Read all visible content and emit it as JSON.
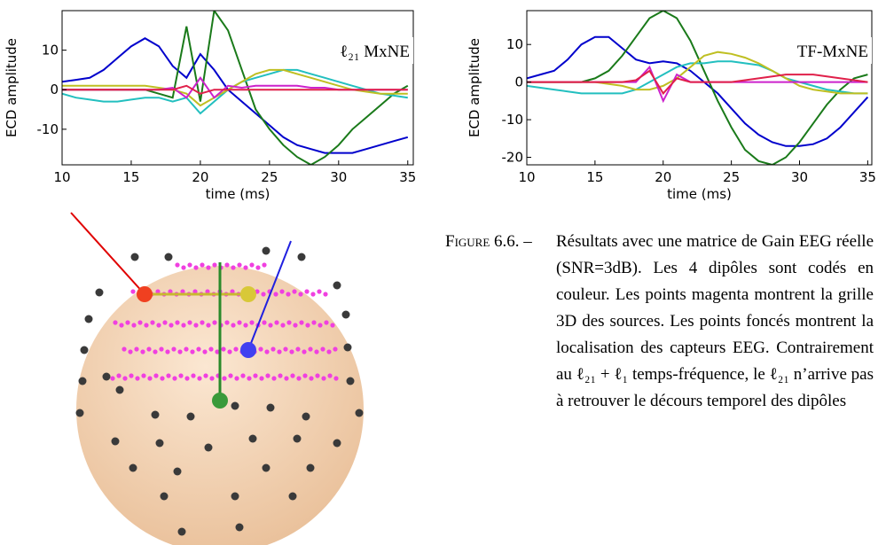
{
  "chart_data": [
    {
      "type": "line",
      "ylabel": "ECD amplitude",
      "xlabel": "time (ms)",
      "annotation": "ℓ₂₁ MxNE",
      "xlim": [
        10,
        35.4
      ],
      "xticks": [
        10,
        15,
        20,
        25,
        30,
        35
      ],
      "ylim": [
        -19,
        20
      ],
      "yticks": [
        -10,
        0,
        10
      ],
      "x": [
        10,
        11,
        12,
        13,
        14,
        15,
        16,
        17,
        18,
        19,
        20,
        21,
        22,
        23,
        24,
        25,
        26,
        27,
        28,
        29,
        30,
        31,
        32,
        33,
        34,
        35
      ],
      "series": [
        {
          "color": "#0000cc",
          "values": [
            2,
            2.5,
            3,
            5,
            8,
            11,
            13,
            11,
            6,
            3,
            9,
            5,
            0,
            -3,
            -6,
            -9,
            -12,
            -14,
            -15,
            -16,
            -16,
            -16,
            -15,
            -14,
            -13,
            -12
          ]
        },
        {
          "color": "#1a7a1a",
          "values": [
            0,
            0,
            0,
            0,
            0,
            0,
            0,
            -1,
            -2,
            16,
            -3,
            20,
            15,
            5,
            -5,
            -10,
            -14,
            -17,
            -19,
            -17,
            -14,
            -10,
            -7,
            -4,
            -1,
            1
          ]
        },
        {
          "color": "#22bfbf",
          "values": [
            -1,
            -2,
            -2.5,
            -3,
            -3,
            -2.5,
            -2,
            -2,
            -3,
            -2,
            -6,
            -3,
            0,
            2,
            3,
            4,
            5,
            5,
            4,
            3,
            2,
            1,
            0,
            -1,
            -1.5,
            -2
          ]
        },
        {
          "color": "#bfbf22",
          "values": [
            1,
            1,
            1,
            1,
            1,
            1,
            1,
            0.5,
            0,
            -1,
            -4,
            -2,
            0,
            2,
            4,
            5,
            5,
            4,
            3,
            2,
            1,
            0,
            -0.5,
            -1,
            -1,
            -1
          ]
        },
        {
          "color": "#cc22cc",
          "values": [
            0,
            0,
            0,
            0,
            0,
            0,
            0,
            0,
            0.5,
            -2,
            3,
            -2,
            1,
            0.5,
            1,
            1,
            1,
            1,
            0.5,
            0.5,
            0,
            0,
            0,
            0,
            0,
            0
          ]
        },
        {
          "color": "#e0204a",
          "values": [
            0,
            0,
            0,
            0,
            0,
            0,
            0,
            0,
            0,
            1,
            -1,
            0,
            0,
            0,
            0,
            0,
            0,
            0,
            0,
            0,
            0,
            0,
            0,
            0,
            0,
            0
          ]
        }
      ]
    },
    {
      "type": "line",
      "ylabel": "ECD amplitude",
      "xlabel": "time (ms)",
      "annotation": "TF-MxNE",
      "xlim": [
        10,
        35.3
      ],
      "xticks": [
        10,
        15,
        20,
        25,
        30,
        35
      ],
      "ylim": [
        -22,
        19
      ],
      "yticks": [
        -20,
        -10,
        0,
        10
      ],
      "x": [
        10,
        11,
        12,
        13,
        14,
        15,
        16,
        17,
        18,
        19,
        20,
        21,
        22,
        23,
        24,
        25,
        26,
        27,
        28,
        29,
        30,
        31,
        32,
        33,
        34,
        35
      ],
      "series": [
        {
          "color": "#0000cc",
          "values": [
            1,
            2,
            3,
            6,
            10,
            12,
            12,
            9,
            6,
            5,
            5.5,
            5,
            3,
            0,
            -3,
            -7,
            -11,
            -14,
            -16,
            -17,
            -17,
            -16.5,
            -15,
            -12,
            -8,
            -4
          ]
        },
        {
          "color": "#1a7a1a",
          "values": [
            0,
            0,
            0,
            0,
            0,
            1,
            3,
            7,
            12,
            17,
            19,
            17,
            11,
            3,
            -5,
            -12,
            -18,
            -21,
            -22,
            -20,
            -16,
            -11,
            -6,
            -2,
            1,
            2
          ]
        },
        {
          "color": "#22bfbf",
          "values": [
            -1,
            -1.5,
            -2,
            -2.5,
            -3,
            -3,
            -3,
            -3,
            -2,
            0,
            2,
            4,
            5,
            5,
            5.5,
            5.5,
            5,
            4.5,
            3,
            1,
            0,
            -1,
            -2,
            -2.5,
            -3,
            -3
          ]
        },
        {
          "color": "#bfbf22",
          "values": [
            0,
            0,
            0,
            0,
            0,
            0,
            -0.5,
            -1,
            -2,
            -2,
            -1,
            1,
            4,
            7,
            8,
            7.5,
            6.5,
            5,
            3,
            1,
            -1,
            -2,
            -2.5,
            -3,
            -3,
            -3
          ]
        },
        {
          "color": "#cc22cc",
          "values": [
            0,
            0,
            0,
            0,
            0,
            0,
            0,
            0,
            0,
            4,
            -5,
            2,
            0,
            0,
            0,
            0,
            0,
            0,
            0,
            0,
            0,
            0,
            0,
            0,
            0,
            0
          ]
        },
        {
          "color": "#e0204a",
          "values": [
            0,
            0,
            0,
            0,
            0,
            0,
            0,
            0,
            0.5,
            3,
            -3,
            1,
            0,
            0,
            0,
            0,
            0.5,
            1,
            1.5,
            2,
            2,
            2,
            1.5,
            1,
            0.5,
            0
          ]
        }
      ]
    }
  ],
  "caption": {
    "label": "Figure 6.6. –",
    "text": "Résultats avec une matrice de Gain EEG réelle (SNR=3dB). Les 4 dipôles sont codés en couleur. Les points magenta montrent la grille 3D des sources. Les points foncés montrent la localisation des capteurs EEG. Contrairement au ℓ₂₁ + ℓ₁ temps-fréquence, le ℓ₂₁ n’arrive pas à retrouver le décours temporel des dipôles"
  }
}
